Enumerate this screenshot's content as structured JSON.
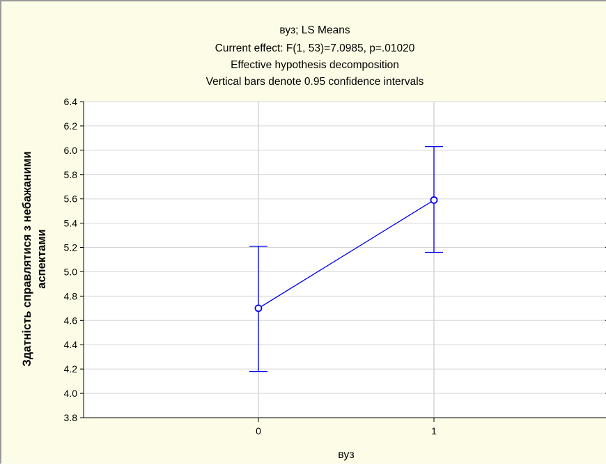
{
  "chart_data": {
    "type": "line",
    "title": "вуз; LS Means",
    "subtitle_lines": [
      "Current effect: F(1, 53)=7.0985, p=.01020",
      "Effective hypothesis decomposition",
      "Vertical bars denote 0.95 confidence intervals"
    ],
    "xlabel": "вуз",
    "ylabel_lines": [
      "Здатність справлятися з небажаними",
      "аспектами"
    ],
    "categories": [
      "0",
      "1"
    ],
    "series": [
      {
        "values": [
          4.7,
          5.59
        ],
        "ci_low": [
          4.18,
          5.16
        ],
        "ci_high": [
          5.21,
          6.03
        ]
      }
    ],
    "ylim": [
      3.8,
      6.4
    ],
    "yticks": [
      "3.8",
      "4.0",
      "4.2",
      "4.4",
      "4.6",
      "4.8",
      "5.0",
      "5.2",
      "5.4",
      "5.6",
      "5.8",
      "6.0",
      "6.2",
      "6.4"
    ],
    "grid": true,
    "colors": {
      "series": "#0000ee",
      "background": "#fdfde7",
      "plot": "#ffffff",
      "grid": "#d6d6d6"
    }
  }
}
